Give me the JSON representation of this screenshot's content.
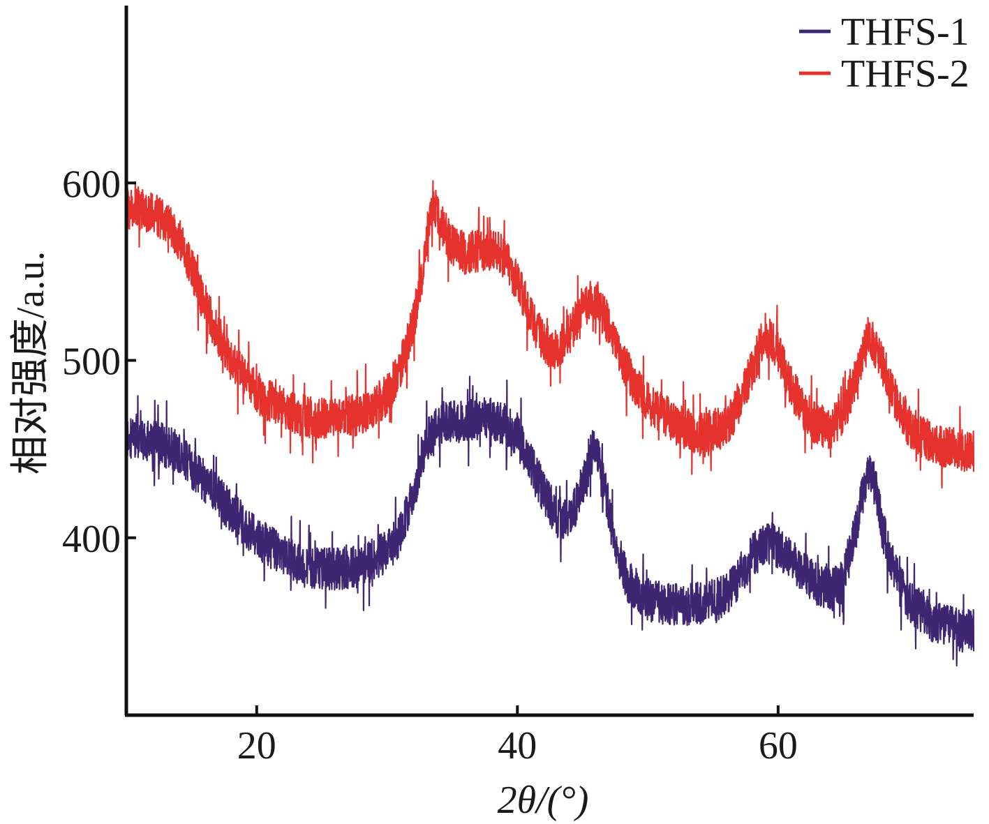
{
  "chart_data": {
    "type": "line",
    "xlabel": "2θ/(°)",
    "ylabel": "相对强度/a.u.",
    "xlim": [
      10,
      75
    ],
    "ylim": [
      300,
      700
    ],
    "xticks": [
      20,
      40,
      60
    ],
    "yticks": [
      400,
      500,
      600
    ],
    "grid": false,
    "legend": "top-right",
    "series": [
      {
        "name": "THFS-1",
        "color": "#3f2672",
        "noise": 12,
        "x": [
          10,
          12,
          14,
          16,
          18,
          20,
          22,
          24,
          26,
          28,
          30,
          31,
          32,
          33,
          34,
          35,
          36,
          37,
          38,
          39,
          40,
          41,
          42,
          43,
          44,
          45,
          45.7,
          46.5,
          47.5,
          48.5,
          50,
          52,
          54,
          56,
          57,
          58,
          59,
          60,
          61,
          62,
          63,
          64,
          65,
          66,
          66.5,
          67,
          67.5,
          68,
          69,
          70,
          72,
          74,
          75
        ],
        "y": [
          455,
          455,
          448,
          432,
          415,
          400,
          390,
          383,
          382,
          384,
          392,
          402,
          425,
          455,
          463,
          465,
          466,
          467,
          467,
          464,
          457,
          442,
          426,
          412,
          410,
          428,
          452,
          438,
          395,
          375,
          365,
          362,
          363,
          367,
          377,
          390,
          398,
          395,
          388,
          380,
          374,
          370,
          376,
          405,
          425,
          440,
          428,
          405,
          380,
          365,
          352,
          348,
          347
        ]
      },
      {
        "name": "THFS-2",
        "color": "#e5322d",
        "noise": 12,
        "x": [
          10,
          11,
          12,
          13,
          14,
          15,
          16,
          17,
          18,
          19,
          20,
          21,
          22,
          23,
          24,
          25,
          26,
          27,
          28,
          29,
          30,
          31,
          32,
          33,
          33.5,
          34,
          35,
          36,
          37,
          38,
          39,
          40,
          41,
          42,
          43,
          44,
          45,
          46,
          47,
          48,
          49,
          50,
          52,
          54,
          56,
          57,
          58,
          59,
          60,
          61,
          62,
          63,
          64,
          65,
          66,
          67,
          68,
          69,
          70,
          72,
          75
        ],
        "y": [
          585,
          585,
          583,
          578,
          568,
          552,
          532,
          515,
          500,
          490,
          482,
          477,
          473,
          470,
          468,
          467,
          467,
          468,
          470,
          474,
          480,
          495,
          520,
          562,
          590,
          578,
          565,
          560,
          562,
          563,
          558,
          545,
          525,
          510,
          505,
          515,
          530,
          535,
          520,
          500,
          487,
          476,
          465,
          458,
          463,
          475,
          495,
          515,
          505,
          485,
          472,
          463,
          462,
          470,
          490,
          515,
          498,
          478,
          463,
          452,
          448
        ]
      }
    ]
  }
}
